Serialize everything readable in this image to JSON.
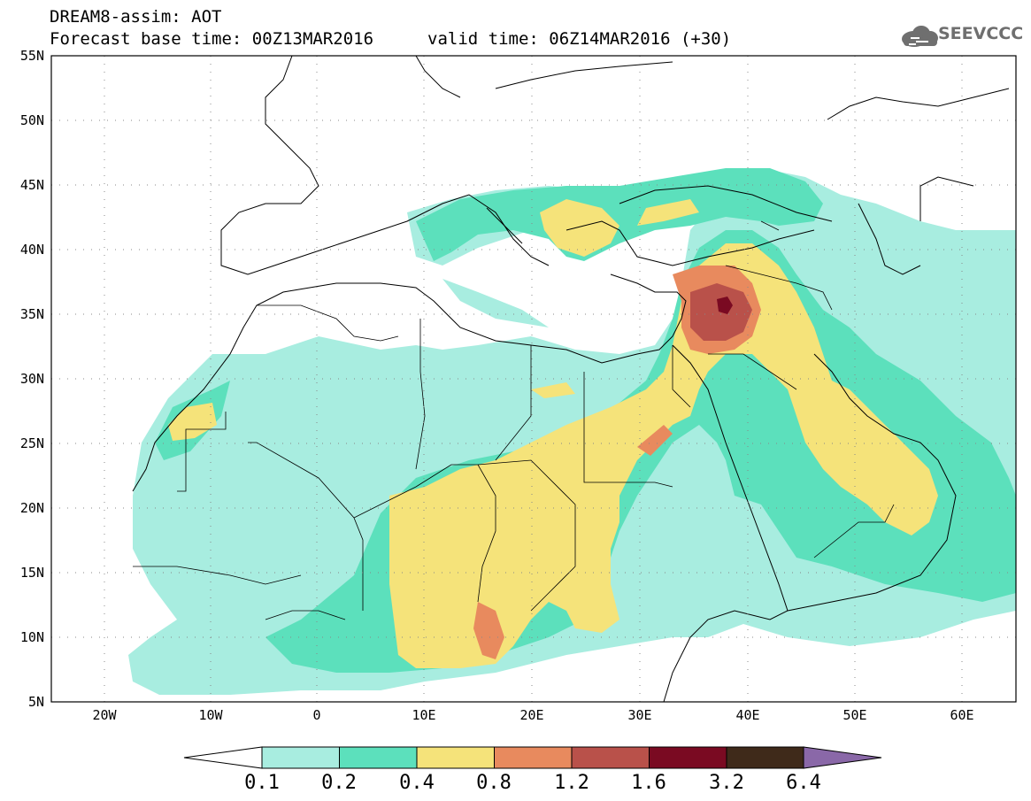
{
  "header": {
    "title": "DREAM8-assim: AOT",
    "forecast_line": "Forecast base time: 00Z13MAR2016",
    "valid_line": "valid time: 06Z14MAR2016 (+30)",
    "logo_text": "SEEVCCC"
  },
  "map": {
    "lon_ticks": [
      "20W",
      "10W",
      "0",
      "10E",
      "20E",
      "30E",
      "40E",
      "50E",
      "60E"
    ],
    "lat_ticks": [
      "55N",
      "50N",
      "45N",
      "40N",
      "35N",
      "30N",
      "25N",
      "20N",
      "15N",
      "10N",
      "5N"
    ],
    "lon_range": [
      -25,
      65
    ],
    "lat_range": [
      5,
      55
    ]
  },
  "colorbar": {
    "labels": [
      "0.1",
      "0.2",
      "0.4",
      "0.8",
      "1.2",
      "1.6",
      "3.2",
      "6.4"
    ],
    "colors": [
      "#a8ede0",
      "#5ce0bc",
      "#f5e37a",
      "#e88a5e",
      "#b9514a",
      "#7a0a22",
      "#3f2a1a",
      "#8a68a8"
    ]
  },
  "icons": [
    "cloud-logo-icon"
  ]
}
